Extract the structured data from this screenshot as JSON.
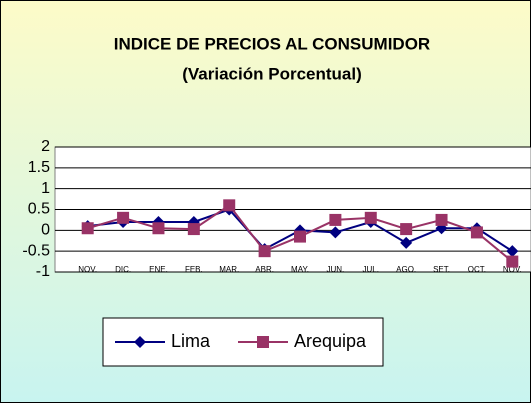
{
  "chart_data": {
    "type": "line",
    "title": "INDICE DE PRECIOS AL CONSUMIDOR",
    "subtitle": "(Variación Porcentual)",
    "categories": [
      "Nov.",
      "Dic.",
      "Ene.",
      "Feb.",
      "Mar.",
      "Abr.",
      "May.",
      "Jun.",
      "Jul.",
      "Ago.",
      "Set.",
      "Oct.",
      "Nov."
    ],
    "series": [
      {
        "name": "Lima",
        "color": "#000080",
        "marker": "diamond",
        "values": [
          0.1,
          0.2,
          0.2,
          0.2,
          0.5,
          -0.45,
          0.0,
          -0.05,
          0.2,
          -0.3,
          0.05,
          0.05,
          -0.5
        ]
      },
      {
        "name": "Arequipa",
        "color": "#993366",
        "marker": "square",
        "values": [
          0.05,
          0.3,
          0.05,
          0.03,
          0.6,
          -0.5,
          -0.15,
          0.25,
          0.3,
          0.03,
          0.25,
          -0.05,
          -0.75
        ]
      }
    ],
    "ylim": [
      -1,
      2
    ],
    "yticks": [
      -1,
      -0.5,
      0,
      0.5,
      1,
      1.5,
      2
    ],
    "grid": true,
    "legend": "bottom"
  }
}
